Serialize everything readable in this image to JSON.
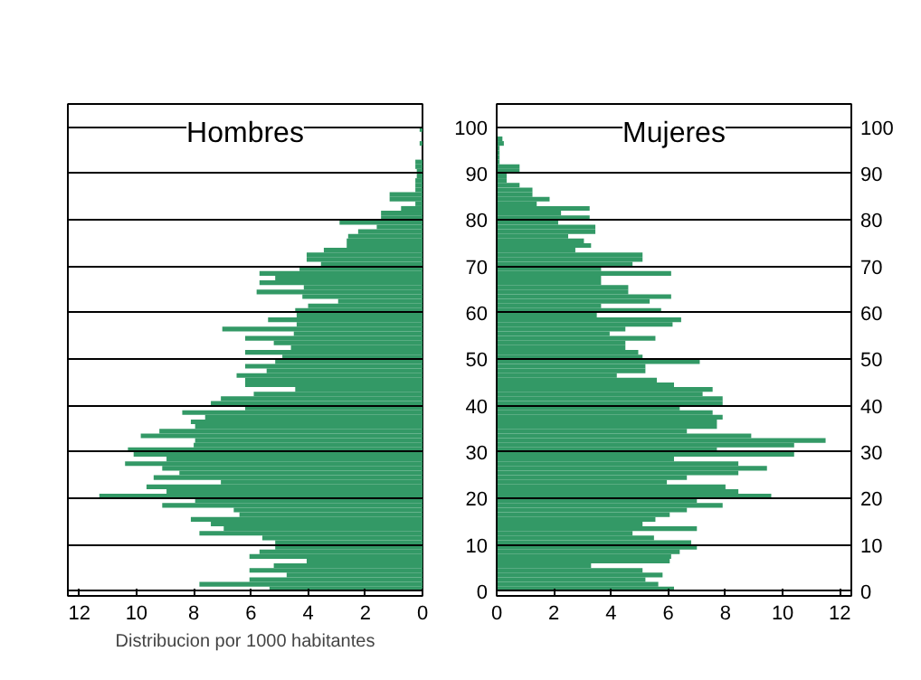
{
  "chart_data": [
    {
      "type": "bar",
      "orientation": "horizontal",
      "title": "Hombres",
      "xlabel": "Distribucion por 1000 habitantes",
      "x": [
        0,
        1,
        2,
        3,
        4,
        5,
        6,
        7,
        8,
        9,
        10,
        11,
        12,
        13,
        14,
        15,
        16,
        17,
        18,
        19,
        20,
        21,
        22,
        23,
        24,
        25,
        26,
        27,
        28,
        29,
        30,
        31,
        32,
        33,
        34,
        35,
        36,
        37,
        38,
        39,
        40,
        41,
        42,
        43,
        44,
        45,
        46,
        47,
        48,
        49,
        50,
        51,
        52,
        53,
        54,
        55,
        56,
        57,
        58,
        59,
        60,
        61,
        62,
        63,
        64,
        65,
        66,
        67,
        68,
        69,
        70,
        71,
        72,
        73,
        74,
        75,
        76,
        77,
        78,
        79,
        80,
        81,
        82,
        83,
        84,
        85,
        86,
        87,
        88,
        89,
        90,
        91,
        92,
        93,
        94,
        95,
        96,
        97,
        98,
        99,
        100
      ],
      "values": [
        5.35,
        7.8,
        6.05,
        4.75,
        6.05,
        5.2,
        4.05,
        6.05,
        5.7,
        5.15,
        5.15,
        5.6,
        7.8,
        6.95,
        7.4,
        8.1,
        6.4,
        6.6,
        9.1,
        7.95,
        11.3,
        8.95,
        9.65,
        7.05,
        9.4,
        8.5,
        9.1,
        10.4,
        8.95,
        10.1,
        10.3,
        8.0,
        7.95,
        9.85,
        9.2,
        7.95,
        8.1,
        7.6,
        8.4,
        6.2,
        7.4,
        7.05,
        5.9,
        4.45,
        6.2,
        6.2,
        6.5,
        5.45,
        6.2,
        5.15,
        4.9,
        6.2,
        4.6,
        5.2,
        6.2,
        4.5,
        7.0,
        4.4,
        5.4,
        4.4,
        4.45,
        4.0,
        2.95,
        4.2,
        5.8,
        4.15,
        5.7,
        5.15,
        5.7,
        4.3,
        3.55,
        4.05,
        4.05,
        3.45,
        2.65,
        2.65,
        2.6,
        2.25,
        1.6,
        2.9,
        1.45,
        1.45,
        0.75,
        0.25,
        1.15,
        1.15,
        0.25,
        0.25,
        0.25,
        0.2,
        0.2,
        0.25,
        0.25,
        0,
        0,
        0,
        0.1,
        0,
        0,
        0.1,
        0
      ],
      "color": "#339966",
      "xlim": [
        12.4,
        0
      ],
      "xticks": [
        12,
        10,
        8,
        6,
        4,
        2,
        0
      ],
      "ylim": [
        -1,
        105
      ],
      "yticks": [
        0,
        10,
        20,
        30,
        40,
        50,
        60,
        70,
        80,
        90,
        100
      ],
      "grid": "y",
      "tick_labels": "x"
    },
    {
      "type": "bar",
      "orientation": "horizontal",
      "title": "Mujeres",
      "x": [
        0,
        1,
        2,
        3,
        4,
        5,
        6,
        7,
        8,
        9,
        10,
        11,
        12,
        13,
        14,
        15,
        16,
        17,
        18,
        19,
        20,
        21,
        22,
        23,
        24,
        25,
        26,
        27,
        28,
        29,
        30,
        31,
        32,
        33,
        34,
        35,
        36,
        37,
        38,
        39,
        40,
        41,
        42,
        43,
        44,
        45,
        46,
        47,
        48,
        49,
        50,
        51,
        52,
        53,
        54,
        55,
        56,
        57,
        58,
        59,
        60,
        61,
        62,
        63,
        64,
        65,
        66,
        67,
        68,
        69,
        70,
        71,
        72,
        73,
        74,
        75,
        76,
        77,
        78,
        79,
        80,
        81,
        82,
        83,
        84,
        85,
        86,
        87,
        88,
        89,
        90,
        91,
        92,
        93,
        94,
        95,
        96,
        97,
        98,
        99,
        100
      ],
      "values": [
        6.2,
        5.65,
        5.2,
        5.8,
        5.1,
        3.3,
        6.05,
        6.1,
        6.4,
        7.0,
        6.8,
        5.5,
        4.75,
        7.0,
        5.1,
        5.55,
        6.05,
        6.65,
        7.9,
        7.0,
        9.6,
        8.45,
        8.0,
        5.95,
        6.65,
        8.45,
        9.45,
        8.45,
        6.2,
        10.4,
        7.7,
        10.4,
        11.5,
        8.9,
        6.65,
        7.7,
        7.7,
        7.9,
        7.55,
        6.4,
        7.9,
        7.9,
        7.2,
        7.55,
        6.2,
        5.6,
        4.2,
        5.2,
        5.2,
        7.1,
        5.1,
        4.95,
        4.5,
        4.5,
        5.55,
        3.95,
        4.5,
        6.15,
        6.45,
        3.5,
        5.75,
        3.65,
        5.35,
        6.1,
        4.6,
        4.6,
        3.65,
        3.65,
        6.1,
        3.65,
        4.75,
        5.1,
        5.1,
        2.75,
        3.3,
        3.05,
        2.5,
        3.45,
        3.45,
        2.15,
        3.25,
        2.25,
        3.25,
        1.4,
        1.85,
        1.25,
        1.25,
        0.8,
        0.35,
        0.35,
        0.8,
        0.8,
        0.1,
        0.1,
        0.1,
        0.1,
        0.25,
        0.2,
        0,
        0,
        0
      ],
      "color": "#339966",
      "xlim": [
        0,
        12.4
      ],
      "xticks": [
        0,
        2,
        4,
        6,
        8,
        10,
        12
      ],
      "ylim": [
        -1,
        105
      ],
      "yticks": [
        0,
        10,
        20,
        30,
        40,
        50,
        60,
        70,
        80,
        90,
        100
      ],
      "y2lim": [
        -1,
        105
      ],
      "y2ticks": [
        0,
        10,
        20,
        30,
        40,
        50,
        60,
        70,
        80,
        90,
        100
      ],
      "grid": "y"
    }
  ]
}
